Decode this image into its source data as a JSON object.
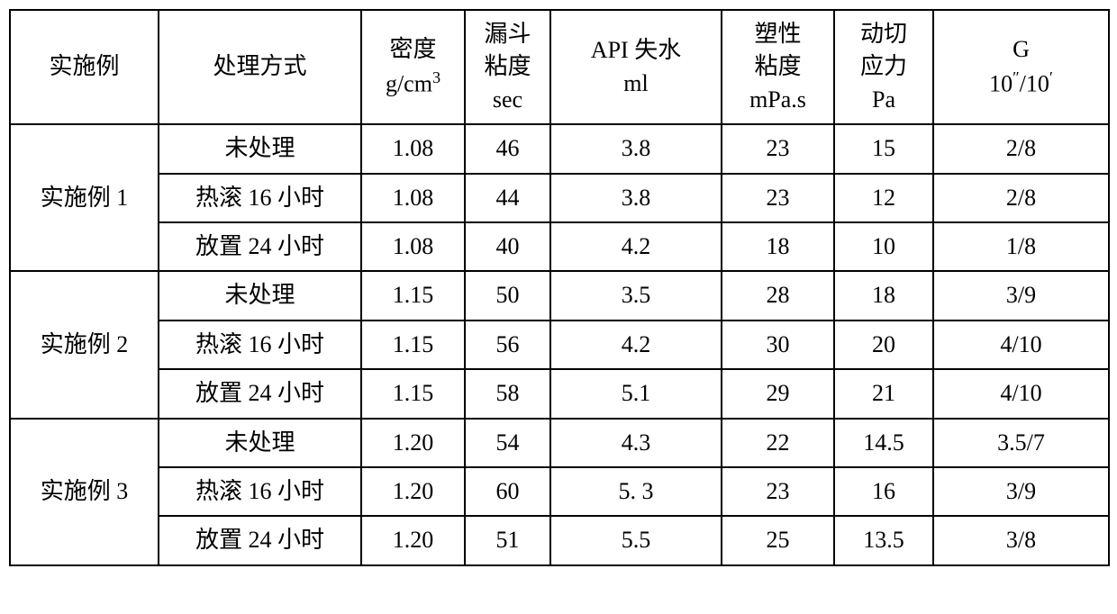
{
  "table": {
    "headers": {
      "example": "实施例",
      "treatment": "处理方式",
      "density_label": "密度",
      "density_unit": "g/cm",
      "density_sup": "3",
      "funnel_l1": "漏斗",
      "funnel_l2": "粘度",
      "funnel_l3": "sec",
      "api_l1": "API  失水",
      "api_l2": "ml",
      "plastic_l1": "塑性",
      "plastic_l2": "粘度",
      "plastic_l3": "mPa.s",
      "shear_l1": "动切",
      "shear_l2": "应力",
      "shear_l3": "Pa",
      "g_label": "G",
      "g_unit_pre": "10",
      "g_unit_sup1": "″",
      "g_unit_mid": "/10",
      "g_unit_sup2": "′"
    },
    "groups": [
      {
        "example": "实施例 1",
        "rows": [
          {
            "treatment": "未处理",
            "density": "1.08",
            "funnel": "46",
            "api": "3.8",
            "plastic": "23",
            "shear": "15",
            "g": "2/8"
          },
          {
            "treatment": "热滚 16 小时",
            "density": "1.08",
            "funnel": "44",
            "api": "3.8",
            "plastic": "23",
            "shear": "12",
            "g": "2/8"
          },
          {
            "treatment": "放置 24 小时",
            "density": "1.08",
            "funnel": "40",
            "api": "4.2",
            "plastic": "18",
            "shear": "10",
            "g": "1/8"
          }
        ]
      },
      {
        "example": "实施例 2",
        "rows": [
          {
            "treatment": "未处理",
            "density": "1.15",
            "funnel": "50",
            "api": "3.5",
            "plastic": "28",
            "shear": "18",
            "g": "3/9"
          },
          {
            "treatment": "热滚 16 小时",
            "density": "1.15",
            "funnel": "56",
            "api": "4.2",
            "plastic": "30",
            "shear": "20",
            "g": "4/10"
          },
          {
            "treatment": "放置 24 小时",
            "density": "1.15",
            "funnel": "58",
            "api": "5.1",
            "plastic": "29",
            "shear": "21",
            "g": "4/10"
          }
        ]
      },
      {
        "example": "实施例 3",
        "rows": [
          {
            "treatment": "未处理",
            "density": "1.20",
            "funnel": "54",
            "api": "4.3",
            "plastic": "22",
            "shear": "14.5",
            "g": "3.5/7"
          },
          {
            "treatment": "热滚 16 小时",
            "density": "1.20",
            "funnel": "60",
            "api": "5. 3",
            "plastic": "23",
            "shear": "16",
            "g": "3/9"
          },
          {
            "treatment": "放置 24 小时",
            "density": "1.20",
            "funnel": "51",
            "api": "5.5",
            "plastic": "25",
            "shear": "13.5",
            "g": "3/8"
          }
        ]
      }
    ]
  },
  "styling": {
    "border_color": "#000000",
    "border_width": 2,
    "background_color": "#ffffff",
    "font_family": "SimSun",
    "font_size": 26,
    "text_color": "#000000",
    "column_widths": {
      "example": 165,
      "treatment": 225,
      "density": 115,
      "funnel": 95,
      "api": 190,
      "plastic": 125,
      "shear": 110,
      "g": 195
    }
  }
}
